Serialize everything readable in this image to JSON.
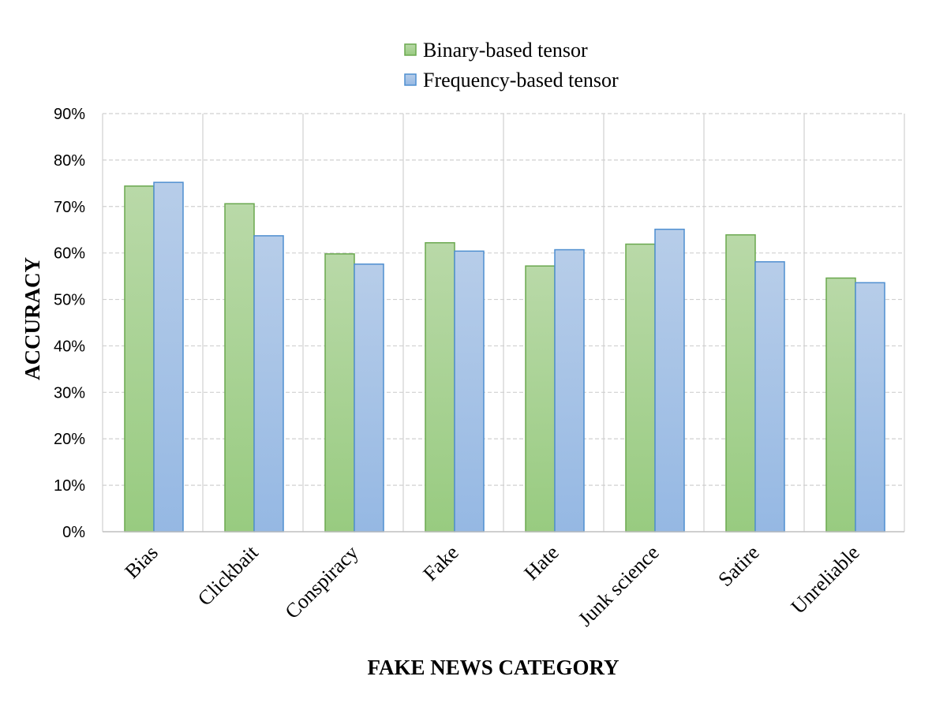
{
  "chart_data": {
    "type": "bar",
    "title": "",
    "xlabel": "FAKE NEWS CATEGORY",
    "ylabel": "ACCURACY",
    "categories": [
      "Bias",
      "Clickbait",
      "Conspiracy",
      "Fake",
      "Hate",
      "Junk science",
      "Satire",
      "Unreliable"
    ],
    "series": [
      {
        "name": "Binary-based tensor",
        "values": [
          74.4,
          70.6,
          59.8,
          62.2,
          57.2,
          61.9,
          63.9,
          54.6
        ]
      },
      {
        "name": "Frequency-based tensor",
        "values": [
          75.2,
          63.7,
          57.6,
          60.4,
          60.7,
          65.1,
          58.1,
          53.6
        ]
      }
    ],
    "ylim": [
      0,
      90
    ],
    "yticks": [
      0,
      10,
      20,
      30,
      40,
      50,
      60,
      70,
      80,
      90
    ],
    "ytick_labels": [
      "0%",
      "10%",
      "20%",
      "30%",
      "40%",
      "50%",
      "60%",
      "70%",
      "80%",
      "90%"
    ],
    "grid": true,
    "legend_position": "top",
    "colors": {
      "binary_top": "#b9d9a8",
      "binary_bottom": "#98cb80",
      "binary_stroke": "#6aa84f",
      "frequency_top": "#b7cde9",
      "frequency_bottom": "#95b8e3",
      "frequency_stroke": "#4f8fd0",
      "grid": "#d0d0d0"
    }
  }
}
